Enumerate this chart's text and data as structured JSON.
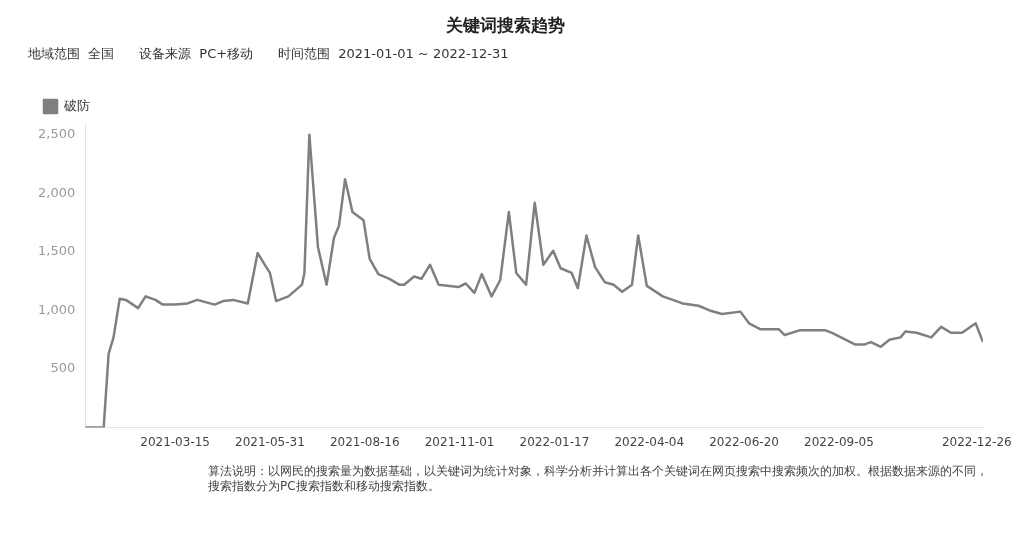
{
  "chart_data": {
    "type": "line",
    "title": "关键词搜索趋势",
    "subtitle": "地域范围  全国      设备来源  PC+移动      时间范围  2021-01-01 ~ 2022-12-31",
    "x": [
      "2021-01-01",
      "2021-01-16",
      "2021-01-20",
      "2021-01-24",
      "2021-01-29",
      "2021-02-03",
      "2021-02-13",
      "2021-02-19",
      "2021-02-27",
      "2021-03-05",
      "2021-03-15",
      "2021-03-25",
      "2021-04-02",
      "2021-04-16",
      "2021-04-23",
      "2021-05-01",
      "2021-05-13",
      "2021-05-21",
      "2021-05-28",
      "2021-05-31",
      "2021-06-05",
      "2021-06-15",
      "2021-06-26",
      "2021-06-28",
      "2021-07-02",
      "2021-07-09",
      "2021-07-16",
      "2021-07-22",
      "2021-07-26",
      "2021-07-31",
      "2021-08-06",
      "2021-08-15",
      "2021-08-20",
      "2021-08-27",
      "2021-09-05",
      "2021-09-13",
      "2021-09-17",
      "2021-09-25",
      "2021-10-01",
      "2021-10-08",
      "2021-10-15",
      "2021-10-31",
      "2021-11-06",
      "2021-11-13",
      "2021-11-19",
      "2021-11-27",
      "2021-12-04",
      "2021-12-11",
      "2021-12-17",
      "2021-12-25",
      "2022-01-01",
      "2022-01-08",
      "2022-01-16",
      "2022-01-22",
      "2022-01-31",
      "2022-02-05",
      "2022-02-12",
      "2022-02-19",
      "2022-02-27",
      "2022-03-06",
      "2022-03-13",
      "2022-03-21",
      "2022-03-26",
      "2022-04-02",
      "2022-04-15",
      "2022-05-01",
      "2022-05-14",
      "2022-05-23",
      "2022-06-02",
      "2022-06-17",
      "2022-06-24",
      "2022-07-03",
      "2022-07-18",
      "2022-07-23",
      "2022-08-04",
      "2022-08-25",
      "2022-08-30",
      "2022-09-18",
      "2022-09-26",
      "2022-10-01",
      "2022-10-09",
      "2022-10-16",
      "2022-10-25",
      "2022-10-29",
      "2022-11-07",
      "2022-11-19",
      "2022-11-27",
      "2022-12-05",
      "2022-12-14",
      "2022-12-25",
      "2022-12-31"
    ],
    "series": [
      {
        "name": "破防",
        "color": "#7f7f7f",
        "values": [
          0,
          0,
          630,
          770,
          1100,
          1090,
          1020,
          1120,
          1090,
          1050,
          1050,
          1060,
          1090,
          1050,
          1080,
          1090,
          1060,
          1490,
          1370,
          1320,
          1080,
          1120,
          1220,
          1320,
          2500,
          1540,
          1220,
          1620,
          1720,
          2120,
          1840,
          1770,
          1440,
          1310,
          1270,
          1220,
          1220,
          1290,
          1270,
          1390,
          1220,
          1200,
          1230,
          1150,
          1310,
          1120,
          1260,
          1840,
          1320,
          1220,
          1920,
          1390,
          1510,
          1360,
          1320,
          1190,
          1640,
          1370,
          1240,
          1220,
          1160,
          1220,
          1640,
          1210,
          1120,
          1060,
          1040,
          1000,
          970,
          990,
          890,
          840,
          840,
          790,
          830,
          830,
          810,
          710,
          710,
          730,
          690,
          750,
          770,
          820,
          810,
          770,
          860,
          810,
          810,
          890,
          730
        ]
      }
    ],
    "xlim": [
      "2021-01-01",
      "2022-12-31"
    ],
    "xticks": [
      "2021-03-15",
      "2021-05-31",
      "2021-08-16",
      "2021-11-01",
      "2022-01-17",
      "2022-04-04",
      "2022-06-20",
      "2022-09-05",
      "2022-12-26"
    ],
    "ylim": [
      0,
      2600
    ],
    "yticks": [
      500,
      {
        "value": 1000,
        "label": "1,000"
      },
      {
        "value": 1500,
        "label": "1,500"
      },
      {
        "value": 2000,
        "label": "2,000"
      },
      {
        "value": 2500,
        "label": "2,500"
      }
    ],
    "legend": "top left",
    "marker": "none",
    "line_style": "solid",
    "annotations": [
      "算法说明：以网民的搜索量为数据基础，以关键词为统计对象，科学分析并计算出各个关键词在网页搜索中搜索频次的加权。根据数据来源的不同，搜索指数分为PC搜索指数和移动搜索指数。"
    ]
  }
}
